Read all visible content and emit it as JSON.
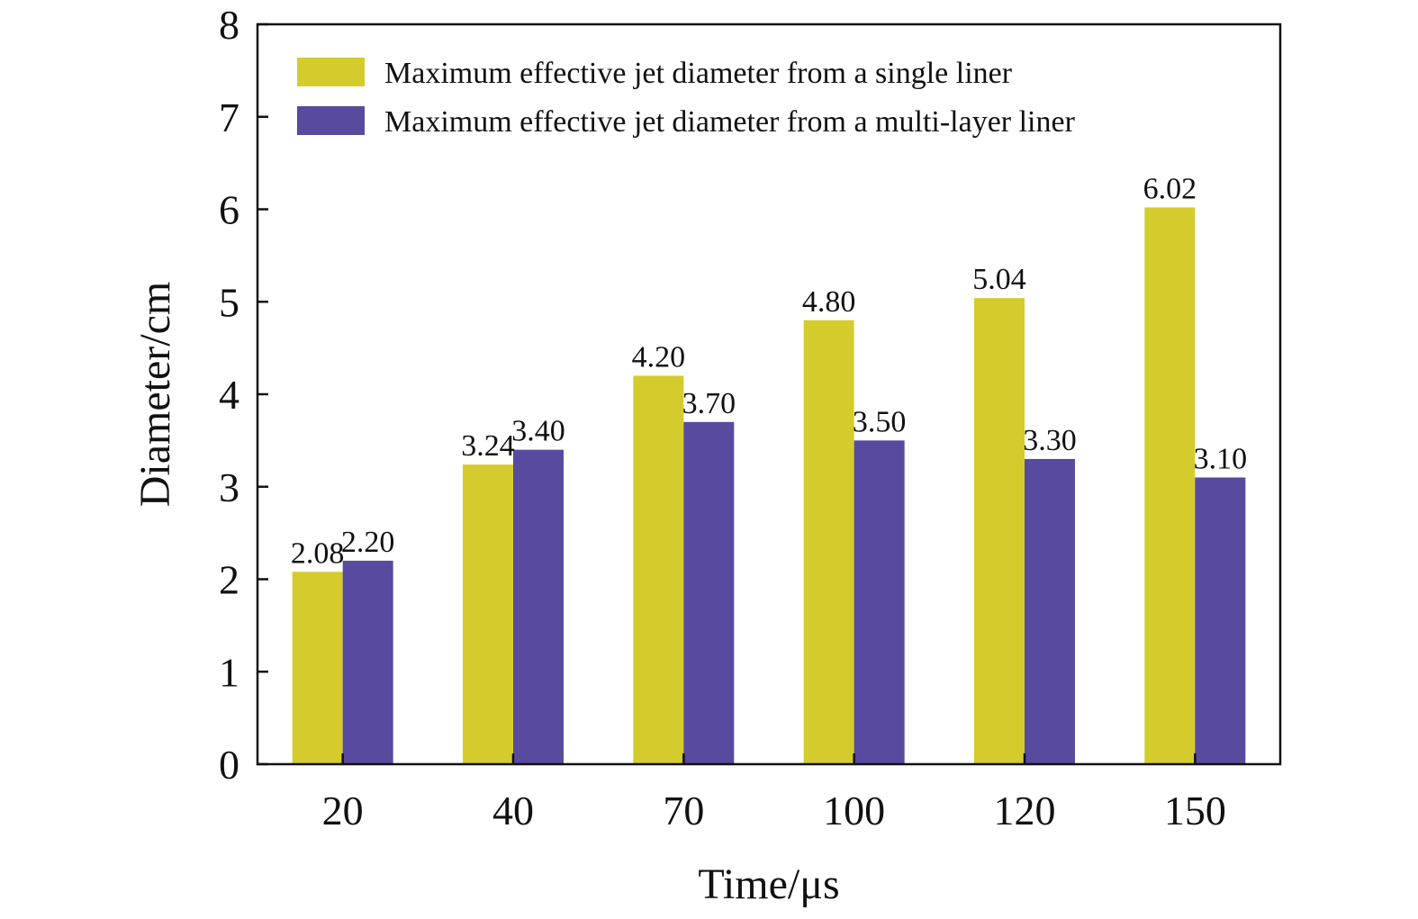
{
  "chart_data": {
    "type": "bar",
    "categories": [
      "20",
      "40",
      "70",
      "100",
      "120",
      "150"
    ],
    "series": [
      {
        "name": "Maximum effective jet diameter from a single liner",
        "values": [
          2.08,
          3.24,
          4.2,
          4.8,
          5.04,
          6.02
        ],
        "labels": [
          "2.08",
          "3.24",
          "4.20",
          "4.80",
          "5.04",
          "6.02"
        ],
        "color": "#d4cc2c"
      },
      {
        "name": "Maximum effective jet diameter from a multi-layer liner",
        "values": [
          2.2,
          3.4,
          3.7,
          3.5,
          3.3,
          3.1
        ],
        "labels": [
          "2.20",
          "3.40",
          "3.70",
          "3.50",
          "3.30",
          "3.10"
        ],
        "color": "#584a9e"
      }
    ],
    "xlabel": "Time/μs",
    "ylabel": "Diameter/cm",
    "ylim": [
      0,
      8
    ],
    "yticks": [
      "0",
      "1",
      "2",
      "3",
      "4",
      "5",
      "6",
      "7",
      "8"
    ],
    "grid": false,
    "legend_position": "top-left"
  }
}
